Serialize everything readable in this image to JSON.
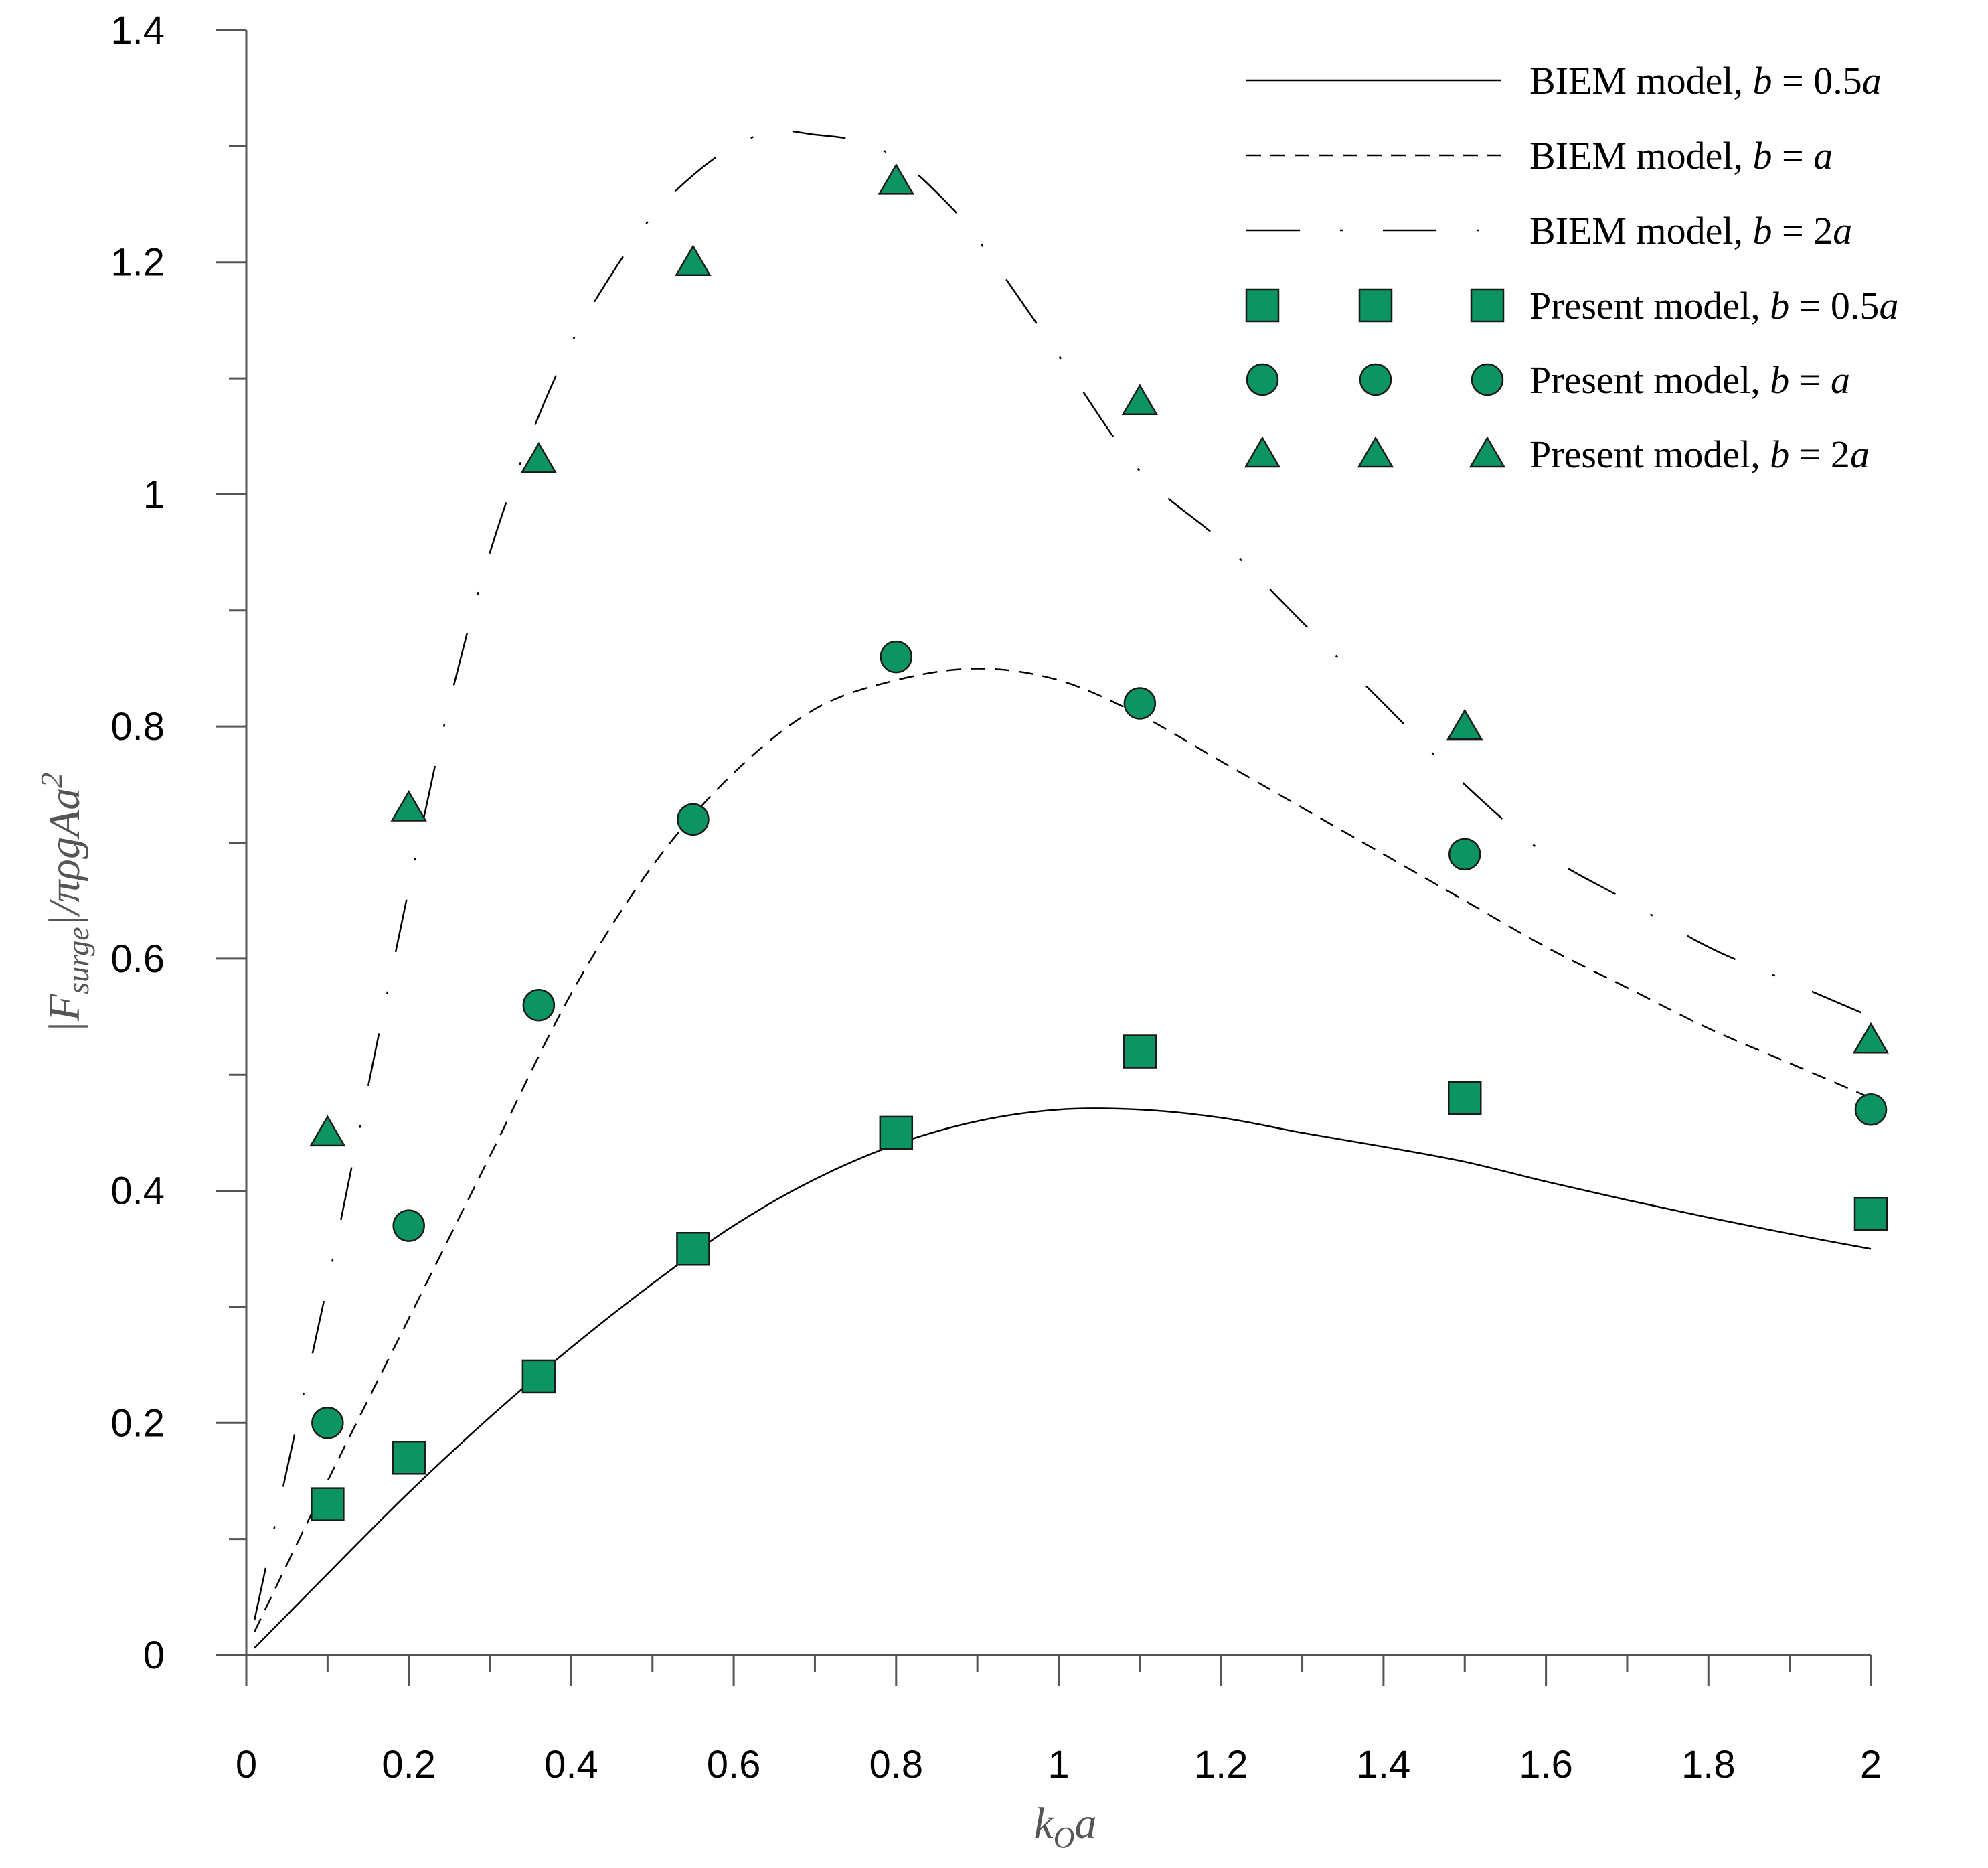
{
  "chart_data": {
    "type": "line",
    "title": "",
    "xlabel": {
      "main": "k",
      "sub": "O",
      "tail": "a"
    },
    "ylabel": {
      "open": "|F",
      "sub": "surge",
      "close": "|/πρgAa",
      "sup": "2"
    },
    "xlim": [
      0,
      2
    ],
    "ylim": [
      0,
      1.4
    ],
    "x_ticks": [
      {
        "v": 0,
        "label": "0"
      },
      {
        "v": 0.2,
        "label": "0.2"
      },
      {
        "v": 0.4,
        "label": "0.4"
      },
      {
        "v": 0.6,
        "label": "0.6"
      },
      {
        "v": 0.8,
        "label": "0.8"
      },
      {
        "v": 1,
        "label": "1"
      },
      {
        "v": 1.2,
        "label": "1.2"
      },
      {
        "v": 1.4,
        "label": "1.4"
      },
      {
        "v": 1.6,
        "label": "1.6"
      },
      {
        "v": 1.8,
        "label": "1.8"
      },
      {
        "v": 2,
        "label": "2"
      }
    ],
    "y_ticks": [
      {
        "v": 0,
        "label": "0"
      },
      {
        "v": 0.2,
        "label": "0.2"
      },
      {
        "v": 0.4,
        "label": "0.4"
      },
      {
        "v": 0.6,
        "label": "0.6"
      },
      {
        "v": 0.8,
        "label": "0.8"
      },
      {
        "v": 1,
        "label": "1"
      },
      {
        "v": 1.2,
        "label": "1.2"
      },
      {
        "v": 1.4,
        "label": "1.4"
      }
    ],
    "marker_color": "#0d9463",
    "line_color": "#000000",
    "lines": [
      {
        "name": "BIEM model, b = 0.5a",
        "label_main": "BIEM model, ",
        "label_it1": "b",
        "label_mid": " = 0.5",
        "label_it2": "a",
        "style": "solid",
        "x": [
          0.01,
          0.1,
          0.2,
          0.3,
          0.4,
          0.5,
          0.6,
          0.7,
          0.8,
          0.9,
          1.0,
          1.1,
          1.2,
          1.3,
          1.4,
          1.5,
          1.6,
          1.7,
          1.8,
          1.9,
          2.0
        ],
        "y": [
          0.006,
          0.07,
          0.14,
          0.205,
          0.265,
          0.32,
          0.37,
          0.41,
          0.44,
          0.46,
          0.47,
          0.47,
          0.463,
          0.45,
          0.438,
          0.425,
          0.408,
          0.392,
          0.377,
          0.363,
          0.35
        ]
      },
      {
        "name": "BIEM model, b = a",
        "label_main": "BIEM model, ",
        "label_it1": "b",
        "label_mid": " = ",
        "label_it2": "a",
        "style": "dashed",
        "x": [
          0.01,
          0.1,
          0.2,
          0.3,
          0.4,
          0.5,
          0.6,
          0.7,
          0.8,
          0.9,
          1.0,
          1.1,
          1.2,
          1.3,
          1.4,
          1.5,
          1.6,
          1.7,
          1.8,
          1.9,
          2.0
        ],
        "y": [
          0.02,
          0.15,
          0.29,
          0.43,
          0.57,
          0.68,
          0.76,
          0.815,
          0.84,
          0.85,
          0.84,
          0.81,
          0.77,
          0.73,
          0.69,
          0.65,
          0.61,
          0.575,
          0.54,
          0.51,
          0.48
        ]
      },
      {
        "name": "BIEM model, b = 2a",
        "label_main": "BIEM model, ",
        "label_it1": "b",
        "label_mid": " = 2",
        "label_it2": "a",
        "style": "dashdot",
        "x": [
          0.01,
          0.05,
          0.1,
          0.15,
          0.2,
          0.25,
          0.3,
          0.35,
          0.4,
          0.45,
          0.5,
          0.55,
          0.6,
          0.65,
          0.7,
          0.75,
          0.8,
          0.85,
          0.9,
          1.0,
          1.1,
          1.2,
          1.3,
          1.4,
          1.5,
          1.6,
          1.7,
          1.8,
          1.9,
          2.0
        ],
        "y": [
          0.03,
          0.16,
          0.32,
          0.49,
          0.66,
          0.82,
          0.95,
          1.05,
          1.13,
          1.19,
          1.24,
          1.275,
          1.3,
          1.313,
          1.31,
          1.305,
          1.29,
          1.26,
          1.22,
          1.12,
          1.02,
          0.96,
          0.89,
          0.82,
          0.75,
          0.69,
          0.65,
          0.61,
          0.58,
          0.55
        ]
      }
    ],
    "series": [
      {
        "name": "Present model, b = 0.5a",
        "label_main": "Present model, ",
        "label_it1": "b",
        "label_mid": " = 0.5",
        "label_it2": "a",
        "marker": "square",
        "x": [
          0.1,
          0.2,
          0.36,
          0.55,
          0.8,
          1.1,
          1.5,
          2.0
        ],
        "y": [
          0.13,
          0.17,
          0.24,
          0.35,
          0.45,
          0.52,
          0.48,
          0.38
        ]
      },
      {
        "name": "Present model, b = a",
        "label_main": "Present model, ",
        "label_it1": "b",
        "label_mid": " = ",
        "label_it2": "a",
        "marker": "circle",
        "x": [
          0.1,
          0.2,
          0.36,
          0.55,
          0.8,
          1.1,
          1.5,
          2.0
        ],
        "y": [
          0.2,
          0.37,
          0.56,
          0.72,
          0.86,
          0.82,
          0.69,
          0.47
        ]
      },
      {
        "name": "Present model, b = 2a",
        "label_main": "Present model, ",
        "label_it1": "b",
        "label_mid": " = 2",
        "label_it2": "a",
        "marker": "triangle",
        "x": [
          0.1,
          0.2,
          0.36,
          0.55,
          0.8,
          1.1,
          1.5,
          2.0
        ],
        "y": [
          0.45,
          0.73,
          1.03,
          1.2,
          1.27,
          1.08,
          0.8,
          0.53
        ]
      }
    ],
    "legend_position": "top-right"
  }
}
